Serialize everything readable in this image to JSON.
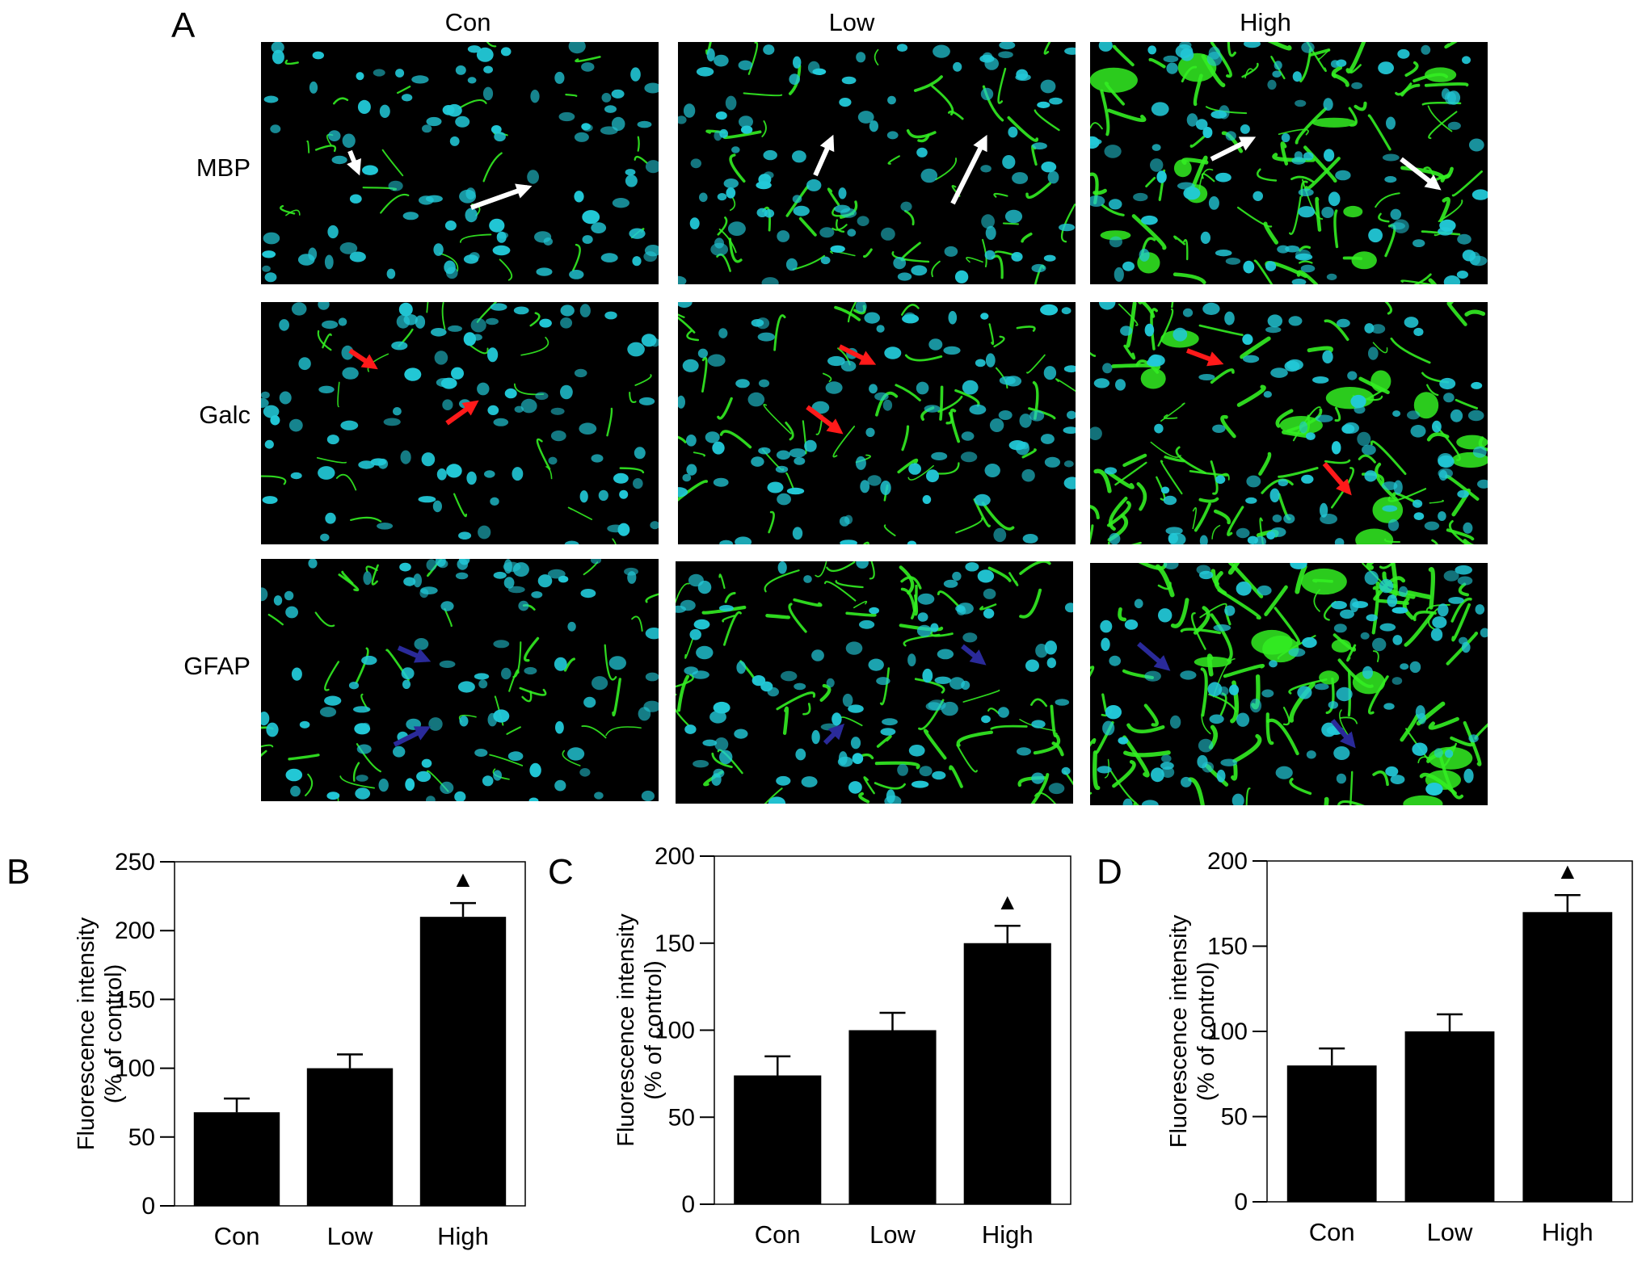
{
  "figure": {
    "panel_a_letter": "A",
    "columns": [
      "Con",
      "Low",
      "High"
    ],
    "rows": [
      "MBP",
      "Galc",
      "GFAP"
    ],
    "arrow_colors": {
      "MBP": "#ffffff",
      "Galc": "#ff1a1a",
      "GFAP": "#2a2a9a"
    },
    "stain_colors": {
      "nuclei": "#22c9d8",
      "marker": "#33ee22"
    }
  },
  "chart_data": [
    {
      "panel": "B",
      "type": "bar",
      "categories": [
        "Con",
        "Low",
        "High"
      ],
      "values": [
        68,
        100,
        210
      ],
      "errors": [
        10,
        10,
        10
      ],
      "significance": [
        "",
        "",
        "▲"
      ],
      "ylabel": "Fluorescence intensity",
      "ylabel2": "(% of control)",
      "ylim": [
        0,
        250
      ],
      "yticks": [
        0,
        50,
        100,
        150,
        200,
        250
      ],
      "bar_color": "#000000"
    },
    {
      "panel": "C",
      "type": "bar",
      "categories": [
        "Con",
        "Low",
        "High"
      ],
      "values": [
        74,
        100,
        150
      ],
      "errors": [
        11,
        10,
        10
      ],
      "significance": [
        "",
        "",
        "▲"
      ],
      "ylabel": "Fluorescence intensity",
      "ylabel2": "(% of control)",
      "ylim": [
        0,
        200
      ],
      "yticks": [
        0,
        50,
        100,
        150,
        200
      ],
      "bar_color": "#000000"
    },
    {
      "panel": "D",
      "type": "bar",
      "categories": [
        "Con",
        "Low",
        "High"
      ],
      "values": [
        80,
        100,
        170
      ],
      "errors": [
        10,
        10,
        10
      ],
      "significance": [
        "",
        "",
        "▲"
      ],
      "ylabel": "Fluorescence intensity",
      "ylabel2": "(% of control)",
      "ylim": [
        0,
        200
      ],
      "yticks": [
        0,
        50,
        100,
        150,
        200
      ],
      "bar_color": "#000000"
    }
  ]
}
